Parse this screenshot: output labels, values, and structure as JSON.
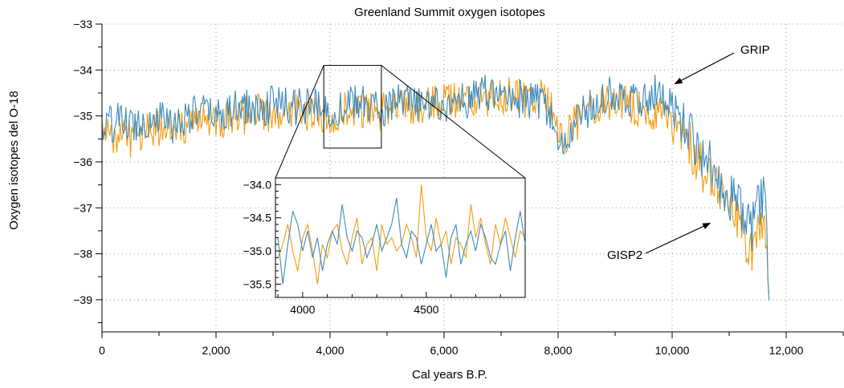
{
  "chart_data": {
    "type": "line",
    "title": "Greenland Summit oxygen isotopes",
    "xlabel": "Cal years B.P.",
    "ylabel": "Oxygen isotopes del O-18",
    "xlim": [
      0,
      13000
    ],
    "ylim": [
      -39.7,
      -33
    ],
    "xticks": [
      0,
      2000,
      4000,
      6000,
      8000,
      10000,
      12000
    ],
    "xtick_labels": [
      "0",
      "2,000",
      "4,000",
      "6,000",
      "8,000",
      "10,000",
      "12,000"
    ],
    "yticks": [
      -33,
      -34,
      -35,
      -36,
      -37,
      -38,
      -39
    ],
    "ytick_labels": [
      "−33",
      "−34",
      "−35",
      "−36",
      "−37",
      "−38",
      "−39"
    ],
    "grid": "dotted",
    "colors": {
      "GRIP": "#3b8bbf",
      "GISP2": "#f39c12"
    },
    "annotations": [
      {
        "text": "GRIP",
        "x": 10020,
        "y": -34.3
      },
      {
        "text": "GISP2",
        "x": 10750,
        "y": -37.3
      }
    ],
    "series": [
      {
        "name": "GRIP",
        "x": [
          0,
          250,
          500,
          750,
          1000,
          1250,
          1500,
          1750,
          2000,
          2250,
          2500,
          2750,
          3000,
          3250,
          3500,
          3750,
          4000,
          4250,
          4500,
          4750,
          5000,
          5250,
          5500,
          5750,
          6000,
          6250,
          6500,
          6750,
          7000,
          7250,
          7500,
          7750,
          8000,
          8100,
          8250,
          8500,
          8750,
          9000,
          9250,
          9500,
          9750,
          10000,
          10250,
          10500,
          10750,
          11000,
          11200,
          11400,
          11500,
          11600,
          11650,
          11700
        ],
        "values": [
          -35.3,
          -35.1,
          -35.2,
          -35.1,
          -35.0,
          -35.2,
          -35.0,
          -34.9,
          -35.0,
          -34.9,
          -34.8,
          -34.9,
          -34.7,
          -34.8,
          -34.8,
          -34.8,
          -34.9,
          -34.8,
          -34.7,
          -34.8,
          -34.8,
          -34.7,
          -34.8,
          -34.7,
          -34.8,
          -34.7,
          -34.6,
          -34.5,
          -34.6,
          -34.6,
          -34.7,
          -34.7,
          -35.5,
          -35.8,
          -35.2,
          -34.9,
          -34.6,
          -34.5,
          -34.6,
          -34.6,
          -34.5,
          -34.8,
          -35.2,
          -35.8,
          -36.2,
          -36.7,
          -37.0,
          -37.5,
          -37.0,
          -36.8,
          -37.3,
          -38.8
        ]
      },
      {
        "name": "GISP2",
        "x": [
          0,
          250,
          500,
          750,
          1000,
          1250,
          1500,
          1750,
          2000,
          2250,
          2500,
          2750,
          3000,
          3250,
          3500,
          3750,
          4000,
          4250,
          4500,
          4750,
          5000,
          5250,
          5500,
          5750,
          6000,
          6250,
          6500,
          6750,
          7000,
          7250,
          7500,
          7750,
          8000,
          8100,
          8250,
          8500,
          8750,
          9000,
          9250,
          9500,
          9750,
          10000,
          10250,
          10500,
          10750,
          11000,
          11200,
          11400,
          11500,
          11600,
          11650,
          11700
        ],
        "values": [
          -35.4,
          -35.4,
          -35.5,
          -35.3,
          -35.3,
          -35.2,
          -35.2,
          -35.1,
          -35.1,
          -35.0,
          -35.0,
          -34.9,
          -35.0,
          -34.9,
          -34.9,
          -34.9,
          -35.0,
          -34.9,
          -34.9,
          -34.9,
          -34.9,
          -34.8,
          -34.8,
          -34.7,
          -34.7,
          -34.7,
          -34.6,
          -34.6,
          -34.6,
          -34.5,
          -34.7,
          -34.5,
          -35.2,
          -35.6,
          -35.2,
          -35.0,
          -34.8,
          -34.7,
          -34.8,
          -34.9,
          -34.9,
          -35.1,
          -35.5,
          -36.1,
          -36.5,
          -37.0,
          -37.4,
          -38.0,
          -37.5,
          -37.2,
          -37.6,
          -39.0
        ]
      }
    ],
    "inset": {
      "xlim": [
        3890,
        4900
      ],
      "ylim": [
        -35.7,
        -33.9
      ],
      "xticks": [
        4000,
        4500
      ],
      "xtick_labels": [
        "4000",
        "4500"
      ],
      "yticks": [
        -34.0,
        -34.5,
        -35.0,
        -35.5
      ],
      "ytick_labels": [
        "−34.0",
        "−34.5",
        "−35.0",
        "−35.5"
      ],
      "series": [
        {
          "name": "GRIP",
          "x": [
            3900,
            3920,
            3940,
            3960,
            3980,
            4000,
            4020,
            4040,
            4060,
            4080,
            4100,
            4120,
            4140,
            4160,
            4180,
            4200,
            4220,
            4240,
            4260,
            4280,
            4300,
            4320,
            4340,
            4360,
            4380,
            4400,
            4420,
            4440,
            4460,
            4480,
            4500,
            4520,
            4540,
            4560,
            4580,
            4600,
            4620,
            4640,
            4660,
            4680,
            4700,
            4720,
            4740,
            4760,
            4780,
            4800,
            4820,
            4840,
            4860,
            4880,
            4900
          ],
          "values": [
            -34.8,
            -35.5,
            -34.9,
            -34.4,
            -34.6,
            -35.0,
            -34.7,
            -35.1,
            -34.8,
            -35.3,
            -34.9,
            -34.7,
            -34.9,
            -34.3,
            -34.8,
            -35.0,
            -34.7,
            -34.8,
            -35.1,
            -34.9,
            -34.6,
            -35.0,
            -34.8,
            -34.6,
            -34.2,
            -34.9,
            -35.1,
            -34.7,
            -34.8,
            -35.2,
            -34.9,
            -34.6,
            -35.0,
            -34.9,
            -35.4,
            -34.8,
            -34.6,
            -35.2,
            -34.9,
            -34.7,
            -35.0,
            -34.6,
            -34.8,
            -35.1,
            -35.2,
            -34.9,
            -34.7,
            -35.3,
            -34.8,
            -34.4,
            -34.9
          ]
        },
        {
          "name": "GISP2",
          "x": [
            3900,
            3920,
            3940,
            3960,
            3980,
            4000,
            4020,
            4040,
            4060,
            4080,
            4100,
            4120,
            4140,
            4160,
            4180,
            4200,
            4220,
            4240,
            4260,
            4280,
            4300,
            4320,
            4340,
            4360,
            4380,
            4400,
            4420,
            4440,
            4460,
            4480,
            4500,
            4520,
            4540,
            4560,
            4580,
            4600,
            4620,
            4640,
            4660,
            4680,
            4700,
            4720,
            4740,
            4760,
            4780,
            4800,
            4820,
            4840,
            4860,
            4880,
            4900
          ],
          "values": [
            -35.1,
            -34.9,
            -34.6,
            -35.0,
            -35.3,
            -34.8,
            -34.6,
            -35.0,
            -35.5,
            -34.9,
            -35.1,
            -34.7,
            -34.6,
            -35.0,
            -35.2,
            -34.8,
            -34.5,
            -35.2,
            -34.9,
            -34.8,
            -35.3,
            -34.6,
            -34.9,
            -34.8,
            -35.0,
            -34.9,
            -34.6,
            -34.8,
            -35.1,
            -34.0,
            -34.8,
            -35.0,
            -34.5,
            -34.9,
            -34.7,
            -35.2,
            -34.8,
            -34.9,
            -35.1,
            -34.3,
            -34.8,
            -34.5,
            -34.9,
            -35.2,
            -34.6,
            -34.9,
            -34.5,
            -34.8,
            -35.1,
            -34.7,
            -34.8
          ]
        }
      ]
    }
  }
}
